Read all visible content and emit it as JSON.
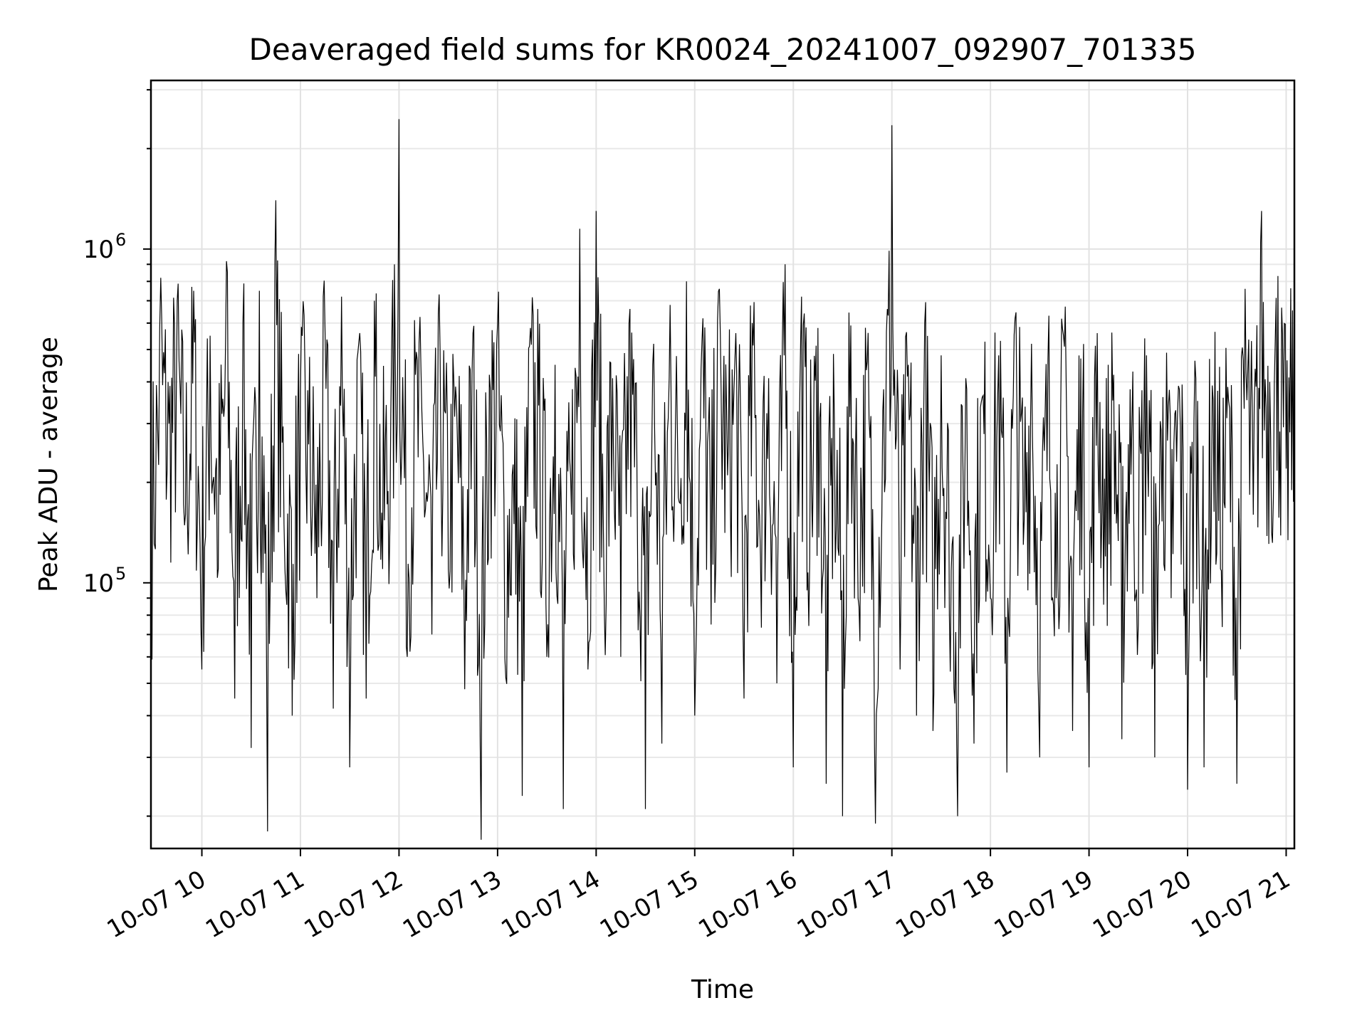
{
  "chart_data": {
    "type": "line",
    "title": "Deaveraged field sums for KR0024_20241007_092907_701335",
    "xlabel": "Time",
    "ylabel": "Peak ADU - average",
    "yscale": "log",
    "ylim": [
      16000,
      3200000
    ],
    "xlim": [
      "2024-10-07 09:29",
      "2024-10-07 21:05"
    ],
    "grid": true,
    "x_ticks": [
      "10-07 10",
      "10-07 11",
      "10-07 12",
      "10-07 13",
      "10-07 14",
      "10-07 15",
      "10-07 16",
      "10-07 17",
      "10-07 18",
      "10-07 19",
      "10-07 20",
      "10-07 21"
    ],
    "x_tick_times": [
      "2024-10-07 10:00",
      "2024-10-07 11:00",
      "2024-10-07 12:00",
      "2024-10-07 13:00",
      "2024-10-07 14:00",
      "2024-10-07 15:00",
      "2024-10-07 16:00",
      "2024-10-07 17:00",
      "2024-10-07 18:00",
      "2024-10-07 19:00",
      "2024-10-07 20:00",
      "2024-10-07 21:00"
    ],
    "y_ticks": [
      {
        "value": 100000,
        "base": "10",
        "exponent": "5"
      },
      {
        "value": 1000000,
        "base": "10",
        "exponent": "6"
      }
    ],
    "series": [
      {
        "color": "#000000",
        "x": [
          "09:29",
          "09:35",
          "09:40",
          "09:45",
          "09:50",
          "09:55",
          "10:00",
          "10:05",
          "10:10",
          "10:15",
          "10:20",
          "10:25",
          "10:30",
          "10:35",
          "10:40",
          "10:45",
          "10:50",
          "10:55",
          "11:00",
          "11:05",
          "11:10",
          "11:15",
          "11:20",
          "11:25",
          "11:30",
          "11:35",
          "11:40",
          "11:45",
          "11:50",
          "11:55",
          "12:00",
          "12:05",
          "12:10",
          "12:15",
          "12:20",
          "12:25",
          "12:30",
          "12:35",
          "12:40",
          "12:45",
          "12:50",
          "12:55",
          "13:00",
          "13:05",
          "13:10",
          "13:15",
          "13:20",
          "13:25",
          "13:30",
          "13:35",
          "13:40",
          "13:45",
          "13:50",
          "13:55",
          "14:00",
          "14:05",
          "14:10",
          "14:15",
          "14:20",
          "14:25",
          "14:30",
          "14:35",
          "14:40",
          "14:45",
          "14:50",
          "14:55",
          "15:00",
          "15:05",
          "15:10",
          "15:15",
          "15:20",
          "15:25",
          "15:30",
          "15:35",
          "15:40",
          "15:45",
          "15:50",
          "15:55",
          "16:00",
          "16:05",
          "16:10",
          "16:15",
          "16:20",
          "16:25",
          "16:30",
          "16:35",
          "16:40",
          "16:45",
          "16:50",
          "16:55",
          "17:00",
          "17:05",
          "17:10",
          "17:15",
          "17:20",
          "17:25",
          "17:30",
          "17:35",
          "17:40",
          "17:45",
          "17:50",
          "17:55",
          "18:00",
          "18:05",
          "18:10",
          "18:15",
          "18:20",
          "18:25",
          "18:30",
          "18:35",
          "18:40",
          "18:45",
          "18:50",
          "18:55",
          "19:00",
          "19:05",
          "19:10",
          "19:15",
          "19:20",
          "19:25",
          "19:30",
          "19:35",
          "19:40",
          "19:45",
          "19:50",
          "19:55",
          "20:00",
          "20:05",
          "20:10",
          "20:15",
          "20:20",
          "20:25",
          "20:30",
          "20:35",
          "20:40",
          "20:45",
          "20:50",
          "20:55",
          "21:00",
          "21:05"
        ],
        "values": [
          80000,
          820000,
          300000,
          700000,
          160000,
          750000,
          55000,
          550000,
          110000,
          920000,
          45000,
          600000,
          32000,
          750000,
          18000,
          1400000,
          150000,
          40000,
          380000,
          260000,
          90000,
          560000,
          42000,
          720000,
          28000,
          490000,
          45000,
          700000,
          110000,
          320000,
          2450000,
          60000,
          420000,
          230000,
          70000,
          500000,
          110000,
          350000,
          48000,
          560000,
          17000,
          420000,
          600000,
          52000,
          150000,
          23000,
          580000,
          340000,
          60000,
          450000,
          21000,
          160000,
          1150000,
          55000,
          1300000,
          80000,
          410000,
          60000,
          600000,
          170000,
          21000,
          520000,
          33000,
          680000,
          180000,
          800000,
          40000,
          620000,
          75000,
          760000,
          210000,
          560000,
          45000,
          600000,
          120000,
          410000,
          50000,
          900000,
          28000,
          720000,
          120000,
          580000,
          25000,
          310000,
          20000,
          590000,
          85000,
          460000,
          19000,
          380000,
          2350000,
          55000,
          450000,
          40000,
          600000,
          36000,
          480000,
          80000,
          20000,
          410000,
          33000,
          360000,
          90000,
          480000,
          27000,
          620000,
          130000,
          520000,
          30000,
          470000,
          90000,
          510000,
          36000,
          470000,
          28000,
          560000,
          120000,
          420000,
          34000,
          380000,
          75000,
          480000,
          30000,
          360000,
          90000,
          380000,
          24000,
          410000,
          28000,
          390000,
          110000,
          350000,
          25000,
          760000,
          160000,
          1300000,
          400000,
          830000,
          220000,
          680000
        ]
      }
    ]
  }
}
